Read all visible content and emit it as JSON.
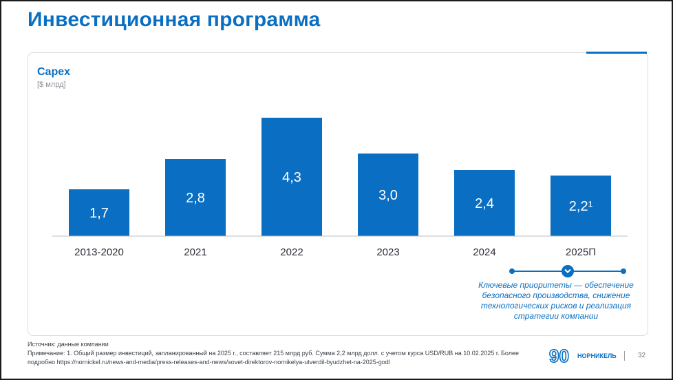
{
  "slide": {
    "title": "Инвестиционная программа",
    "page_number": "32"
  },
  "chart_data": {
    "type": "bar",
    "title": "Capex",
    "ylabel": "[$ млрд]",
    "categories": [
      "2013-2020",
      "2021",
      "2022",
      "2023",
      "2024",
      "2025П"
    ],
    "values": [
      1.7,
      2.8,
      4.3,
      3.0,
      2.4,
      2.2
    ],
    "value_labels": [
      "1,7",
      "2,8",
      "4,3",
      "3,0",
      "2,4",
      "2,2¹"
    ],
    "ylim": [
      0,
      4.3
    ],
    "grid": false,
    "bar_color": "#0a6fc2"
  },
  "priorities": {
    "text": "Ключевые приоритеты — обеспечение безопасного производства, снижение технологических рисков и реализация стратегии компании"
  },
  "footer": {
    "source": "Источник: данные компании",
    "note": "Примечание: 1. Общий размер инвестиций, запланированный на 2025 г., составляет 215 млрд руб. Сумма 2,2 млрд долл. с учетом курса USD/RUB на 10.02.2025 г. Более подробно https://nornickel.ru/news-and-media/press-releases-and-news/sovet-direktorov-nornikelya-utverdil-byudzhet-na-2025-god/",
    "brand_mark": "90",
    "brand_name": "НОРНИКЕЛЬ"
  },
  "colors": {
    "accent": "#0a6fc2",
    "text": "#2b2f36"
  }
}
